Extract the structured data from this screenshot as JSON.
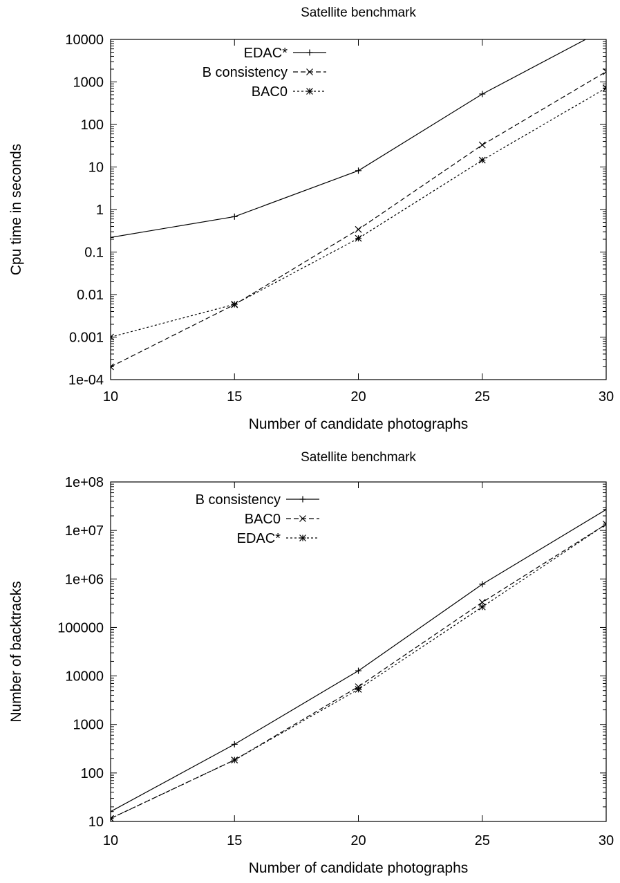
{
  "chart_data": [
    {
      "type": "line",
      "title": "Satellite benchmark",
      "xlabel": "Number of candidate photographs",
      "ylabel": "Cpu time in seconds",
      "yscale": "log",
      "xlim": [
        10,
        30
      ],
      "ylim": [
        0.0001,
        10000
      ],
      "xticks": [
        10,
        15,
        20,
        25,
        30
      ],
      "xtick_labels": [
        "10",
        "15",
        "20",
        "25",
        "30"
      ],
      "yticks": [
        0.0001,
        0.001,
        0.01,
        0.1,
        1,
        10,
        100,
        1000,
        10000
      ],
      "ytick_labels": [
        "1e-04",
        "0.001",
        "0.01",
        "0.1",
        "1",
        "10",
        "100",
        "1000",
        "10000"
      ],
      "grid": false,
      "legend_position": "top-left",
      "series": [
        {
          "name": "EDAC*",
          "marker": "plus",
          "dash": "",
          "x": [
            10,
            15,
            20,
            25,
            30
          ],
          "y": [
            0.22,
            0.68,
            8.2,
            520,
            18000
          ]
        },
        {
          "name": "B consistency",
          "marker": "cross",
          "dash": "7,4",
          "x": [
            10,
            15,
            20,
            25,
            30
          ],
          "y": [
            0.0002,
            0.0058,
            0.34,
            33,
            1750
          ]
        },
        {
          "name": "BAC0",
          "marker": "star",
          "dash": "3,3",
          "x": [
            10,
            15,
            20,
            25,
            30
          ],
          "y": [
            0.001,
            0.0059,
            0.21,
            14.5,
            720
          ]
        }
      ]
    },
    {
      "type": "line",
      "title": "Satellite benchmark",
      "xlabel": "Number of candidate photographs",
      "ylabel": "Number of backtracks",
      "yscale": "log",
      "xlim": [
        10,
        30
      ],
      "ylim": [
        10,
        100000000
      ],
      "xticks": [
        10,
        15,
        20,
        25,
        30
      ],
      "xtick_labels": [
        "10",
        "15",
        "20",
        "25",
        "30"
      ],
      "yticks": [
        10,
        100,
        1000,
        10000,
        100000,
        1000000,
        10000000,
        100000000
      ],
      "ytick_labels": [
        "10",
        "100",
        "1000",
        "10000",
        "100000",
        "1e+06",
        "1e+07",
        "1e+08"
      ],
      "grid": false,
      "legend_position": "top-left",
      "series": [
        {
          "name": "B consistency",
          "marker": "plus",
          "dash": "",
          "x": [
            10,
            15,
            20,
            25,
            30
          ],
          "y": [
            16,
            390,
            12800,
            780000,
            27000000
          ]
        },
        {
          "name": "BAC0",
          "marker": "cross",
          "dash": "7,4",
          "x": [
            10,
            15,
            20,
            25,
            30
          ],
          "y": [
            11.5,
            185,
            6000,
            330000,
            13500000
          ]
        },
        {
          "name": "EDAC*",
          "marker": "star",
          "dash": "3,3",
          "x": [
            10,
            15,
            20,
            25,
            30
          ],
          "y": [
            11.5,
            185,
            5300,
            265000,
            13500000
          ]
        }
      ]
    }
  ]
}
